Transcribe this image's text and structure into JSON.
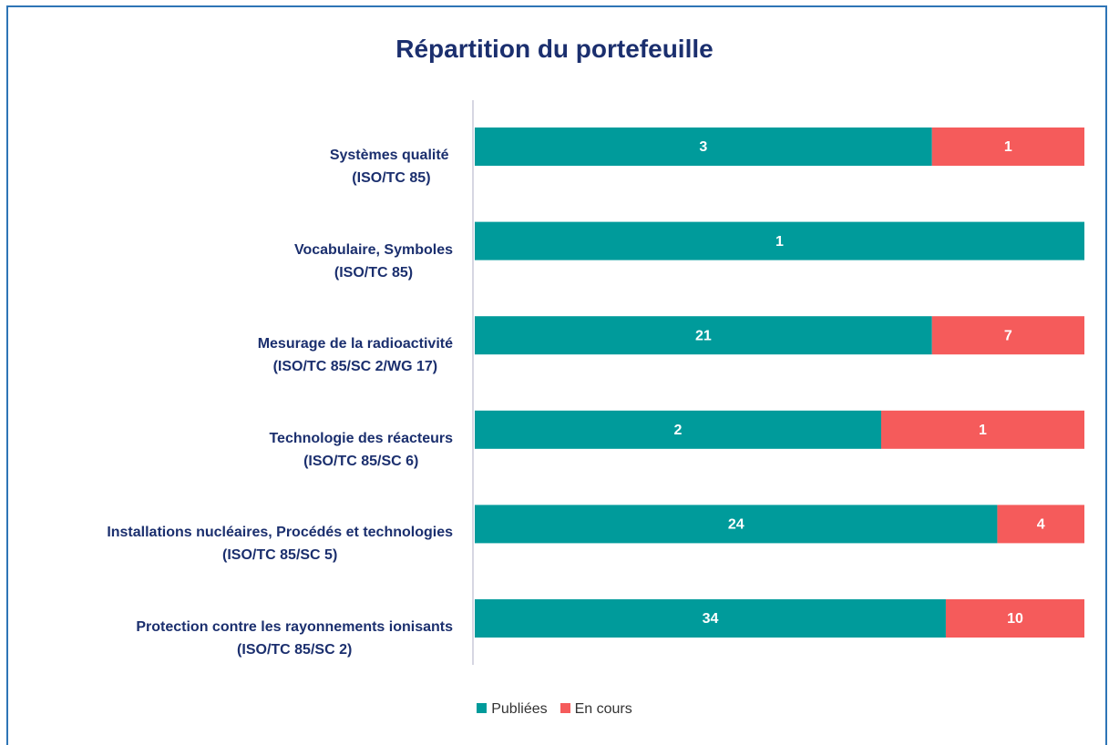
{
  "chart_data": {
    "type": "bar",
    "orientation": "horizontal",
    "stacking": "percent",
    "title": "Répartition du portefeuille",
    "categories": [
      "Systèmes qualité \n(ISO/TC 85)",
      "Vocabulaire, Symboles\n(ISO/TC 85)",
      "Mesurage de la radioactivité\n(ISO/TC 85/SC 2/WG 17)",
      "Technologie des réacteurs\n(ISO/TC 85/SC 6)",
      "Installations nucléaires, Procédés et technologies\n(ISO/TC 85/SC 5)",
      "Protection contre les rayonnements ionisants\n(ISO/TC 85/SC 2)"
    ],
    "series": [
      {
        "name": "Publiées",
        "color": "#009b9b",
        "values": [
          3,
          1,
          21,
          2,
          24,
          34
        ]
      },
      {
        "name": "En cours",
        "color": "#f55b5b",
        "values": [
          1,
          null,
          7,
          1,
          4,
          10
        ]
      }
    ],
    "legend": "bottom"
  }
}
